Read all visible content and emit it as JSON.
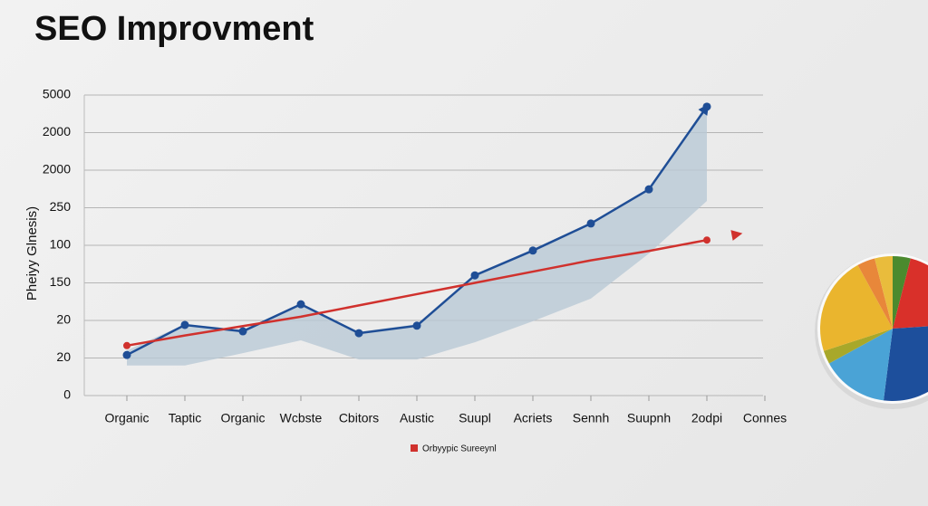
{
  "chart_data": [
    {
      "type": "line",
      "title": "SEO Improvment",
      "y_label": "Pheiyy Glnesis)",
      "categories": [
        "Organic",
        "Taptic",
        "Organic",
        "Wcbste",
        "Cbitors",
        "Austic",
        "Suupl",
        "Acriets",
        "Sennh",
        "Suupnh",
        "2odpi",
        "Connes"
      ],
      "ylim": [
        0,
        8
      ],
      "yticks": [
        {
          "value": 0,
          "label": "0"
        },
        {
          "value": 1,
          "label": "20"
        },
        {
          "value": 2,
          "label": "20"
        },
        {
          "value": 3,
          "label": "150"
        },
        {
          "value": 4,
          "label": "100"
        },
        {
          "value": 5,
          "label": "250"
        },
        {
          "value": 6,
          "label": "2000"
        },
        {
          "value": 7,
          "label": "2000"
        },
        {
          "value": 8,
          "label": "5000"
        }
      ],
      "grid": true,
      "band": {
        "color": "#b9c9d6",
        "upper": [
          1.2,
          1.9,
          1.75,
          2.45,
          1.7,
          1.9,
          3.2,
          3.9,
          4.6,
          5.5,
          7.76,
          null
        ],
        "lower": [
          0.8,
          0.8,
          1.13,
          1.47,
          0.96,
          0.96,
          1.42,
          1.98,
          2.58,
          3.78,
          5.18,
          null
        ]
      },
      "series": [
        {
          "name": null,
          "color": "#1f4e96",
          "values": [
            1.08,
            1.88,
            1.71,
            2.43,
            1.66,
            1.86,
            3.2,
            3.86,
            4.58,
            5.49,
            7.69,
            null
          ]
        },
        {
          "name": "Orbyypic Sureeynl",
          "color": "#d0312d",
          "values": [
            1.33,
            1.6,
            1.85,
            2.1,
            2.4,
            2.7,
            3.0,
            3.3,
            3.6,
            3.85,
            4.14,
            null
          ]
        }
      ]
    },
    {
      "type": "pie",
      "values": [
        4,
        20,
        28,
        15,
        3,
        22,
        4,
        4
      ],
      "colors": [
        "#4b8a2e",
        "#d9302a",
        "#1d4f9c",
        "#4aa3d6",
        "#a8a82a",
        "#eab52e",
        "#e8873a",
        "#e9bc3c"
      ]
    }
  ]
}
